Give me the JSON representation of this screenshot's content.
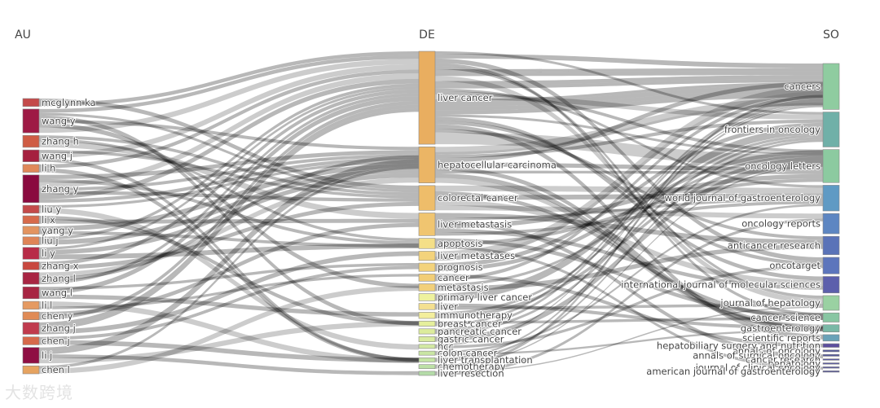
{
  "chart_data": {
    "type": "sankey",
    "columns": [
      "AU",
      "DE",
      "SO"
    ],
    "nodes": {
      "AU": [
        {
          "label": "mcglynn ka",
          "value": 1.0,
          "color": "#c44a4a"
        },
        {
          "label": "wang y",
          "value": 3.0,
          "color": "#9e1a45"
        },
        {
          "label": "zhang h",
          "value": 1.5,
          "color": "#cf5c44"
        },
        {
          "label": "wang j",
          "value": 1.5,
          "color": "#a5203f"
        },
        {
          "label": "li h",
          "value": 1.0,
          "color": "#e0895a"
        },
        {
          "label": "zhang y",
          "value": 3.5,
          "color": "#8a0a3f"
        },
        {
          "label": "liu y",
          "value": 1.0,
          "color": "#c44a4a"
        },
        {
          "label": "li x",
          "value": 1.0,
          "color": "#d76a4b"
        },
        {
          "label": "yang y",
          "value": 1.0,
          "color": "#e39460"
        },
        {
          "label": "liu j",
          "value": 1.0,
          "color": "#df8457"
        },
        {
          "label": "li y",
          "value": 1.5,
          "color": "#b82c48"
        },
        {
          "label": "zhang x",
          "value": 1.0,
          "color": "#c8483f"
        },
        {
          "label": "zhang l",
          "value": 1.5,
          "color": "#a82543"
        },
        {
          "label": "wang l",
          "value": 1.5,
          "color": "#a82543"
        },
        {
          "label": "li l",
          "value": 1.0,
          "color": "#e59a62"
        },
        {
          "label": "chen y",
          "value": 1.0,
          "color": "#e08b56"
        },
        {
          "label": "zhang j",
          "value": 1.5,
          "color": "#c03a4d"
        },
        {
          "label": "chen j",
          "value": 1.0,
          "color": "#d6694b"
        },
        {
          "label": "li j",
          "value": 2.0,
          "color": "#8f0e43"
        },
        {
          "label": "chen l",
          "value": 1.0,
          "color": "#e6a360"
        }
      ],
      "DE": [
        {
          "label": "liver cancer",
          "value": 9.0,
          "color": "#e9ae60"
        },
        {
          "label": "hepatocellular carcinoma",
          "value": 3.5,
          "color": "#ebb565"
        },
        {
          "label": "colorectal cancer",
          "value": 2.4,
          "color": "#eebd6a"
        },
        {
          "label": "liver metastasis",
          "value": 2.2,
          "color": "#f0c570"
        },
        {
          "label": "apoptosis",
          "value": 1.0,
          "color": "#f4df88"
        },
        {
          "label": "liver metastases",
          "value": 0.9,
          "color": "#f3d37c"
        },
        {
          "label": "prognosis",
          "value": 0.8,
          "color": "#f3d37c"
        },
        {
          "label": "cancer",
          "value": 0.7,
          "color": "#f2ce76"
        },
        {
          "label": "metastasis",
          "value": 0.7,
          "color": "#f2d07a"
        },
        {
          "label": "primary liver cancer",
          "value": 0.7,
          "color": "#eef29e"
        },
        {
          "label": "liver",
          "value": 0.6,
          "color": "#f4e090"
        },
        {
          "label": "immunotherapy",
          "value": 0.6,
          "color": "#f3ee9c"
        },
        {
          "label": "breast cancer",
          "value": 0.5,
          "color": "#e5ef9c"
        },
        {
          "label": "pancreatic cancer",
          "value": 0.5,
          "color": "#dcec9c"
        },
        {
          "label": "gastric cancer",
          "value": 0.5,
          "color": "#d9eba0"
        },
        {
          "label": "hcc",
          "value": 0.4,
          "color": "#d3e9a3"
        },
        {
          "label": "colon cancer",
          "value": 0.4,
          "color": "#c9e5a4"
        },
        {
          "label": "liver transplantation",
          "value": 0.4,
          "color": "#c5e4a4"
        },
        {
          "label": "chemotherapy",
          "value": 0.4,
          "color": "#bde0a6"
        },
        {
          "label": "liver resection",
          "value": 0.4,
          "color": "#b4dba8"
        }
      ],
      "SO": [
        {
          "label": "cancers",
          "value": 5.0,
          "color": "#8fcca0"
        },
        {
          "label": "frontiers in oncology",
          "value": 3.8,
          "color": "#70b0a8"
        },
        {
          "label": "oncology letters",
          "value": 3.6,
          "color": "#8ccaa0"
        },
        {
          "label": "world journal of gastroenterology",
          "value": 2.8,
          "color": "#5f9ac4"
        },
        {
          "label": "oncology reports",
          "value": 2.2,
          "color": "#5d86c2"
        },
        {
          "label": "anticancer research",
          "value": 2.0,
          "color": "#5a73b8"
        },
        {
          "label": "oncotarget",
          "value": 1.8,
          "color": "#5c75bc"
        },
        {
          "label": "international journal of molecular sciences",
          "value": 1.8,
          "color": "#5c5fac"
        },
        {
          "label": "journal of hepatology",
          "value": 1.6,
          "color": "#9ad1a2"
        },
        {
          "label": "cancer science",
          "value": 1.0,
          "color": "#88c6a2"
        },
        {
          "label": "gastroenterology",
          "value": 0.8,
          "color": "#7ab8a6"
        },
        {
          "label": "scientific reports",
          "value": 0.7,
          "color": "#6aa2b8"
        },
        {
          "label": "hepatobiliary surgery and nutrition",
          "value": 0.4,
          "color": "#5d4f9e"
        },
        {
          "label": "annals of oncology",
          "value": 0.2,
          "color": "#555a9a"
        },
        {
          "label": "annals of surgical oncology",
          "value": 0.2,
          "color": "#555a9a"
        },
        {
          "label": "cancer research",
          "value": 0.15,
          "color": "#5a5aa0"
        },
        {
          "label": "hepatology",
          "value": 0.15,
          "color": "#5a5aa0"
        },
        {
          "label": "journal of clinical oncology",
          "value": 0.15,
          "color": "#5a5aa0"
        },
        {
          "label": "american journal of gastroenterology",
          "value": 0.15,
          "color": "#5a5aa0"
        }
      ]
    }
  },
  "watermark": "大数跨境"
}
